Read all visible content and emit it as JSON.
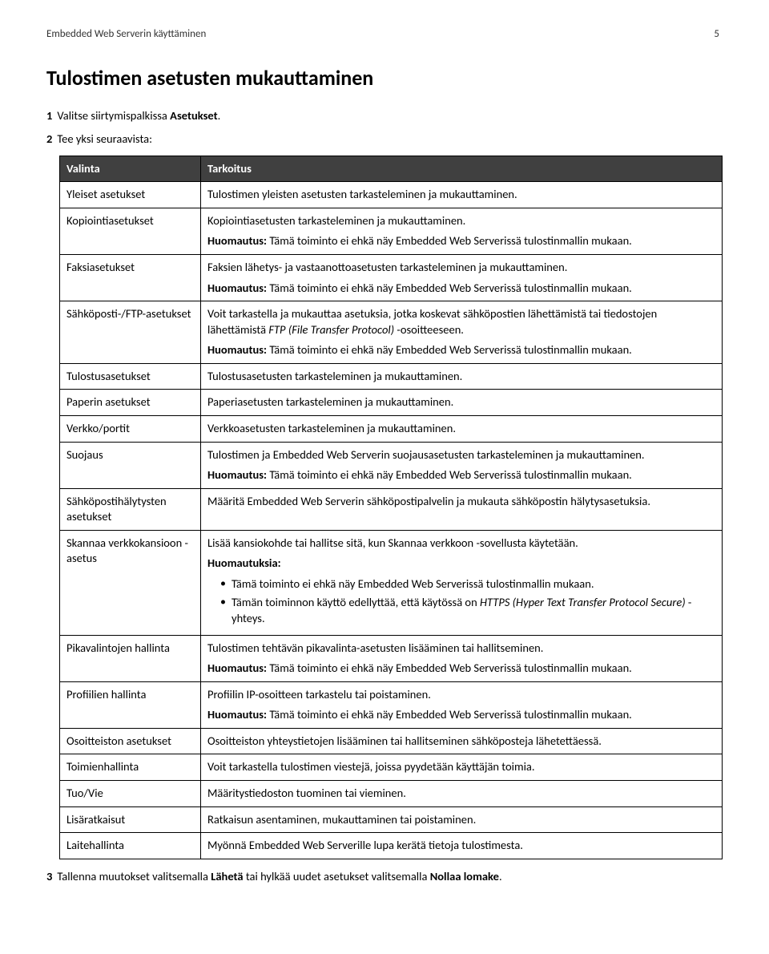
{
  "header": {
    "left": "Embedded Web Serverin käyttäminen",
    "page": "5"
  },
  "title": "Tulostimen asetusten mukauttaminen",
  "steps": {
    "s1": {
      "num": "1",
      "pre": "Valitse siirtymispalkissa ",
      "bold": "Asetukset",
      "post": "."
    },
    "s2": {
      "num": "2",
      "text": "Tee yksi seuraavista:"
    },
    "s3": {
      "num": "3",
      "pre": "Tallenna muutokset valitsemalla ",
      "b1": "Lähetä",
      "mid": " tai hylkää uudet asetukset valitsemalla ",
      "b2": "Nollaa lomake",
      "post": "."
    }
  },
  "table": {
    "head": {
      "c1": "Valinta",
      "c2": "Tarkoitus"
    },
    "rows": {
      "r0": {
        "c1": "Yleiset asetukset",
        "c2a": "Tulostimen yleisten asetusten tarkasteleminen ja mukauttaminen."
      },
      "r1": {
        "c1": "Kopiointiasetukset",
        "c2a": "Kopiointiasetusten tarkasteleminen ja mukauttaminen.",
        "noteLabel": "Huomautus:",
        "noteText": " Tämä toiminto ei ehkä näy Embedded Web Serverissä tulostinmallin mukaan."
      },
      "r2": {
        "c1": "Faksiasetukset",
        "c2a": "Faksien lähetys- ja vastaanottoasetusten tarkasteleminen ja mukauttaminen.",
        "noteLabel": "Huomautus:",
        "noteText": " Tämä toiminto ei ehkä näy Embedded Web Serverissä tulostinmallin mukaan."
      },
      "r3": {
        "c1": "Sähköposti-/FTP-asetukset",
        "c2a_pre": "Voit tarkastella ja mukauttaa asetuksia, jotka koskevat sähköpostien lähettämistä tai tiedostojen lähettämistä ",
        "c2a_i": "FTP (File Transfer Protocol)",
        "c2a_post": " -osoitteeseen.",
        "noteLabel": "Huomautus:",
        "noteText": " Tämä toiminto ei ehkä näy Embedded Web Serverissä tulostinmallin mukaan."
      },
      "r4": {
        "c1": "Tulostusasetukset",
        "c2a": "Tulostusasetusten tarkasteleminen ja mukauttaminen."
      },
      "r5": {
        "c1": "Paperin asetukset",
        "c2a": "Paperiasetusten tarkasteleminen ja mukauttaminen."
      },
      "r6": {
        "c1": "Verkko/portit",
        "c2a": "Verkkoasetusten tarkasteleminen ja mukauttaminen."
      },
      "r7": {
        "c1": "Suojaus",
        "c2a": "Tulostimen ja Embedded Web Serverin suojausasetusten tarkasteleminen ja mukauttaminen.",
        "noteLabel": "Huomautus:",
        "noteText": " Tämä toiminto ei ehkä näy Embedded Web Serverissä tulostinmallin mukaan."
      },
      "r8": {
        "c1": "Sähköpostihälytysten asetukset",
        "c2a": "Määritä Embedded Web Serverin sähköpostipalvelin ja mukauta sähköpostin hälytysasetuksia."
      },
      "r9": {
        "c1": "Skannaa verkkokansioon -asetus",
        "c2a": "Lisää kansiokohde tai hallitse sitä, kun Skannaa verkkoon -sovellusta käytetään.",
        "notesLabel": "Huomautuksia:",
        "b1": "Tämä toiminto ei ehkä näy Embedded Web Serverissä tulostinmallin mukaan.",
        "b2_pre": "Tämän toiminnon käyttö edellyttää, että käytössä on ",
        "b2_i": "HTTPS (Hyper Text Transfer Protocol Secure)",
        "b2_post": " -yhteys."
      },
      "r10": {
        "c1": "Pikavalintojen hallinta",
        "c2a": "Tulostimen tehtävän pikavalinta-asetusten lisääminen tai hallitseminen.",
        "noteLabel": "Huomautus:",
        "noteText": " Tämä toiminto ei ehkä näy Embedded Web Serverissä tulostinmallin mukaan."
      },
      "r11": {
        "c1": "Profiilien hallinta",
        "c2a": "Profiilin IP-osoitteen tarkastelu tai poistaminen.",
        "noteLabel": "Huomautus:",
        "noteText": " Tämä toiminto ei ehkä näy Embedded Web Serverissä tulostinmallin mukaan."
      },
      "r12": {
        "c1": "Osoitteiston asetukset",
        "c2a": "Osoitteiston yhteystietojen lisääminen tai hallitseminen sähköposteja lähetettäessä."
      },
      "r13": {
        "c1": "Toimienhallinta",
        "c2a": "Voit tarkastella tulostimen viestejä, joissa pyydetään käyttäjän toimia."
      },
      "r14": {
        "c1": "Tuo/Vie",
        "c2a": "Määritystiedoston tuominen tai vieminen."
      },
      "r15": {
        "c1": "Lisäratkaisut",
        "c2a": "Ratkaisun asentaminen, mukauttaminen tai poistaminen."
      },
      "r16": {
        "c1": "Laitehallinta",
        "c2a": "Myönnä Embedded Web Serverille lupa kerätä tietoja tulostimesta."
      }
    }
  }
}
